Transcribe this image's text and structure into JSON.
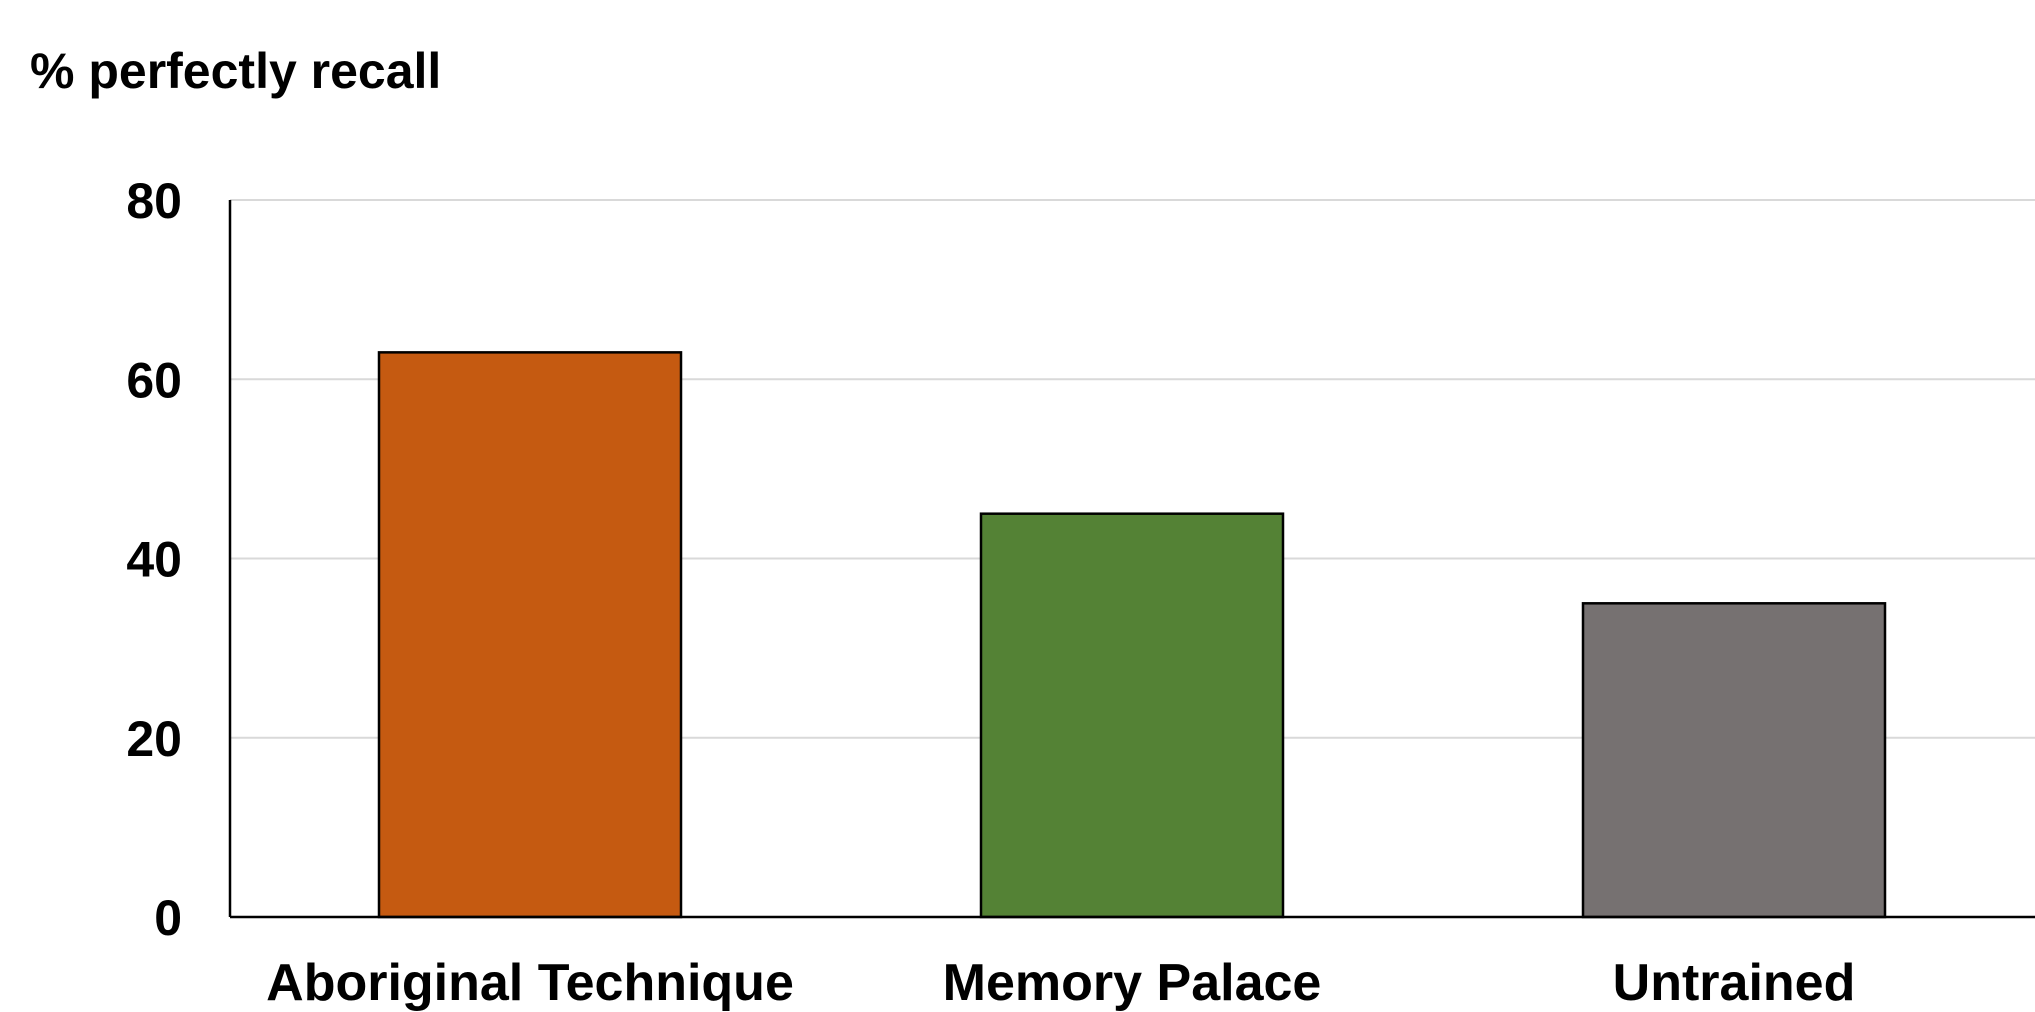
{
  "chart_data": {
    "type": "bar",
    "title": "",
    "xlabel": "",
    "ylabel": "% perfectly recall",
    "categories": [
      "Aboriginal Technique",
      "Memory Palace",
      "Untrained"
    ],
    "values": [
      63,
      45,
      35
    ],
    "colors": [
      "#c55a11",
      "#548235",
      "#767171"
    ],
    "ylim": [
      0,
      80
    ],
    "yticks": [
      0,
      20,
      40,
      60,
      80
    ],
    "grid": true,
    "legend": "none"
  }
}
